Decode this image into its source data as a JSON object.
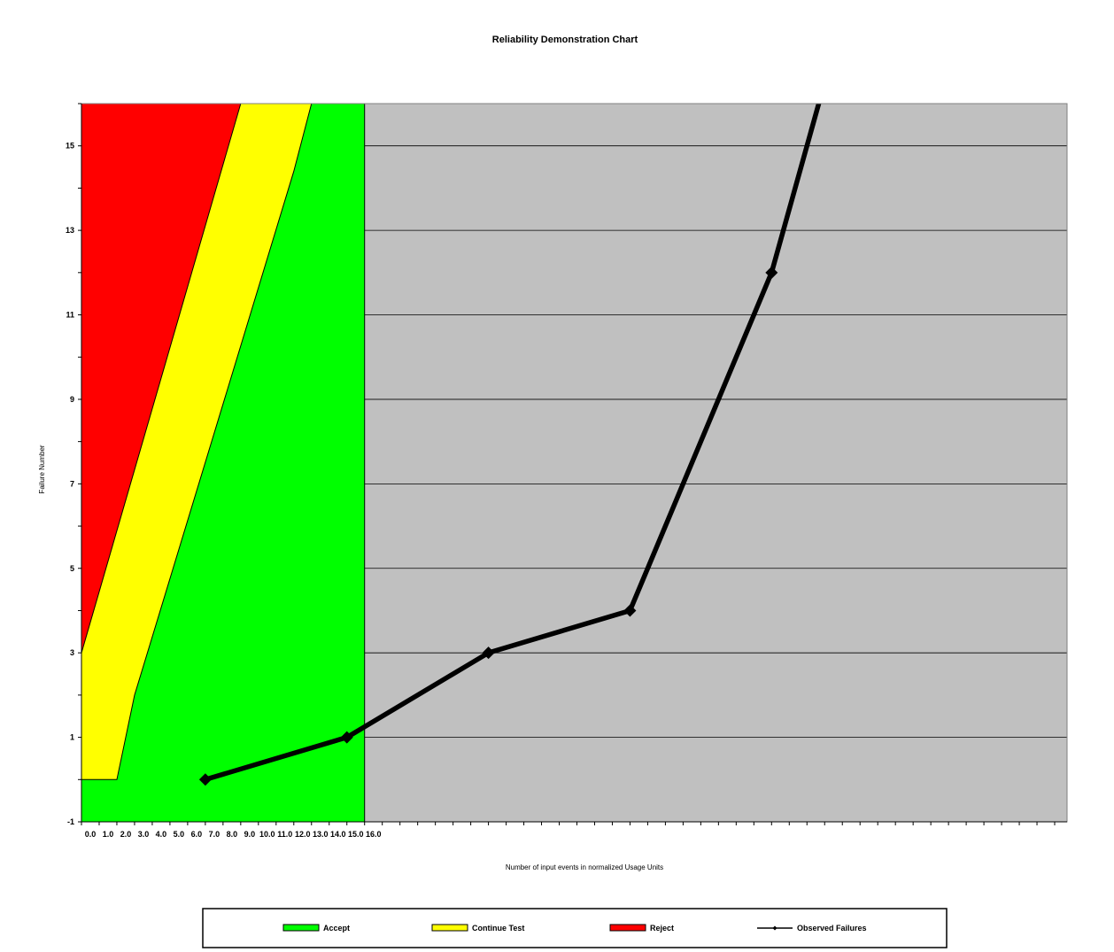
{
  "chart_data": {
    "type": "line",
    "title": "Reliability Demonstration Chart",
    "xlabel": "Number of input events in normalized Usage Units",
    "ylabel": "Failure Number",
    "xlim": [
      0,
      55.7
    ],
    "ylim": [
      -1,
      16
    ],
    "x_tick_labels": [
      "0.0",
      "1.0",
      "2.0",
      "3.0",
      "4.0",
      "5.0",
      "6.0",
      "7.0",
      "8.0",
      "9.0",
      "10.0",
      "11.0",
      "12.0",
      "13.0",
      "14.0",
      "15.0",
      "16.0"
    ],
    "x_minor_tick_max": 55,
    "y_tick_labels": [
      -1,
      1,
      3,
      5,
      7,
      9,
      11,
      13,
      15
    ],
    "grid": "horizontal",
    "plot_background": "#c0c0c0",
    "legend_position": "bottom",
    "regions": [
      {
        "name": "Accept",
        "color": "#00ff00"
      },
      {
        "name": "Continue Test",
        "color": "#ffff00"
      },
      {
        "name": "Reject",
        "color": "#ff0000"
      }
    ],
    "boundaries": {
      "region_x_max": 16,
      "reject_line": [
        [
          0,
          3
        ],
        [
          9,
          16
        ]
      ],
      "accept_line": [
        [
          0,
          0
        ],
        [
          2,
          0
        ],
        [
          3,
          2
        ],
        [
          12,
          14.4
        ],
        [
          13,
          16
        ]
      ]
    },
    "series": [
      {
        "name": "Observed Failures",
        "color": "#000000",
        "x": [
          7,
          15,
          23,
          31,
          39,
          47
        ],
        "y": [
          0,
          1,
          3,
          4,
          12,
          24
        ]
      }
    ]
  }
}
